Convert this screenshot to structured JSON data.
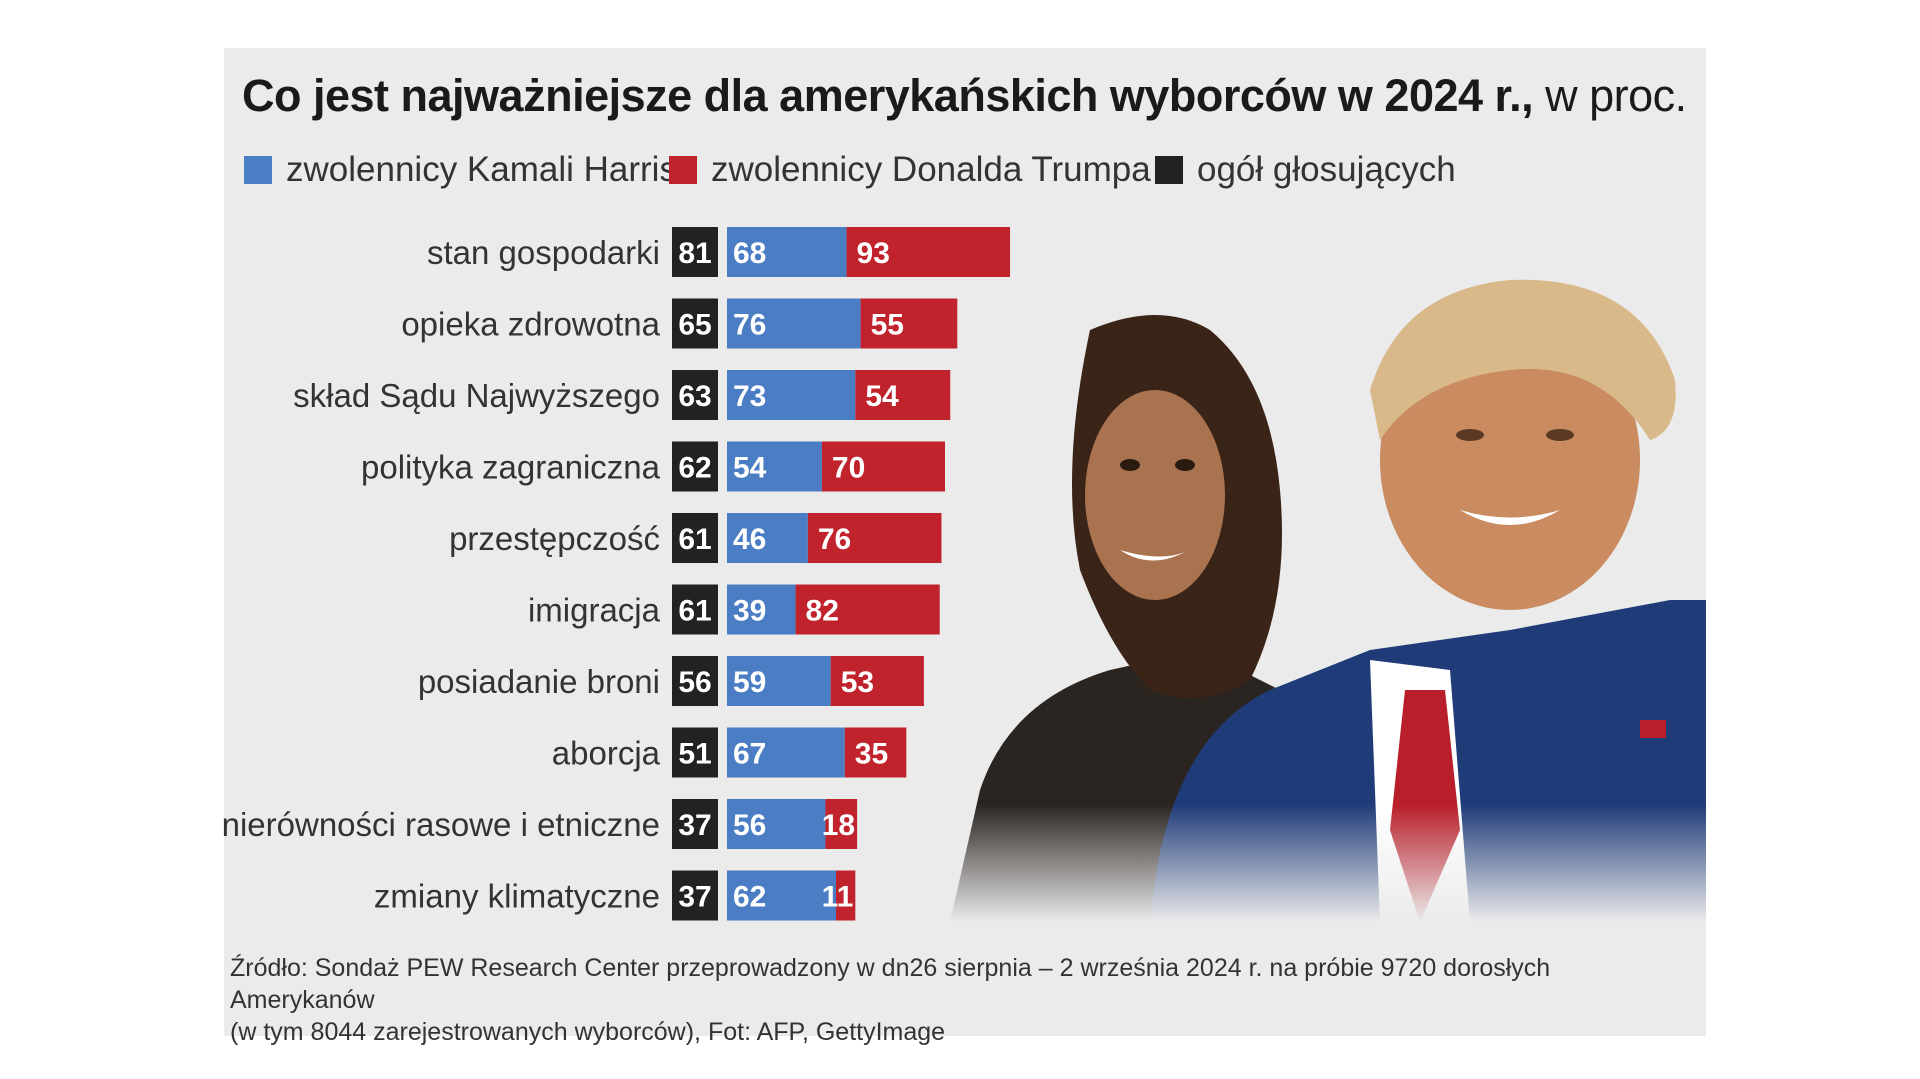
{
  "title": {
    "bold": "Co jest najważniejsze dla amerykańskich wyborców w 2024 r.,",
    "light": " w proc."
  },
  "legend": [
    {
      "label": "zwolennicy Kamali Harris",
      "color": "#4a7dc4"
    },
    {
      "label": "zwolennicy Donalda Trumpa",
      "color": "#c0232c"
    },
    {
      "label": "ogół głosujących",
      "color": "#222222"
    }
  ],
  "colors": {
    "harris": "#4a7dc4",
    "trump": "#c0232c",
    "overall": "#222222"
  },
  "chart_data": {
    "type": "bar",
    "title": "Co jest najważniejsze dla amerykańskich wyborców w 2024 r., w proc.",
    "categories": [
      "stan gospodarki",
      "opieka zdrowotna",
      "skład Sądu Najwyższego",
      "polityka zagraniczna",
      "przestępczość",
      "imigracja",
      "posiadanie broni",
      "aborcja",
      "nierówności rasowe i etniczne",
      "zmiany klimatyczne"
    ],
    "series": [
      {
        "name": "ogół głosujących",
        "values": [
          81,
          65,
          63,
          62,
          61,
          61,
          56,
          51,
          37,
          37
        ]
      },
      {
        "name": "zwolennicy Kamali Harris",
        "values": [
          68,
          76,
          73,
          54,
          46,
          39,
          59,
          67,
          56,
          62
        ]
      },
      {
        "name": "zwolennicy Donalda Trumpa",
        "values": [
          93,
          55,
          54,
          70,
          76,
          82,
          53,
          35,
          18,
          11
        ]
      }
    ],
    "stacked": true,
    "unit": "%"
  },
  "source": {
    "line1": "Źródło: Sondaż PEW Research Center przeprowadzony w dn26 sierpnia – 2 września 2024 r. na próbie  9720 dorosłych Amerykanów",
    "line2": "(w tym 8044 zarejestrowanych wyborców), Fot: AFP, GettyImage"
  }
}
